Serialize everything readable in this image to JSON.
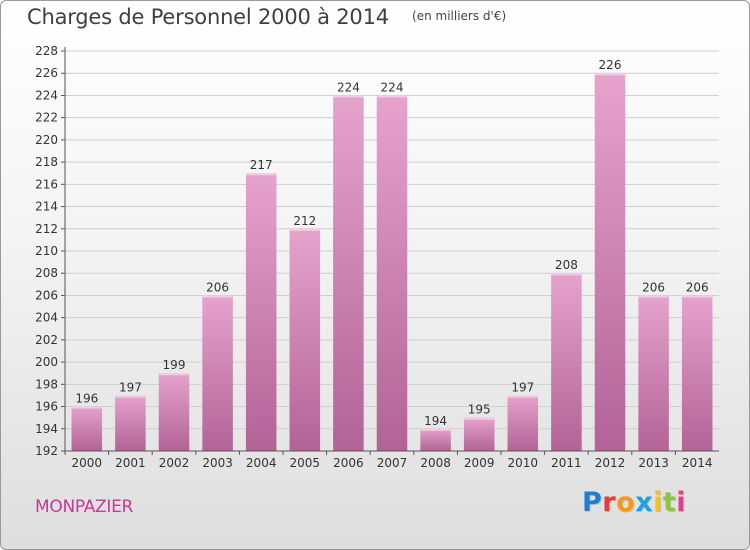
{
  "header": {
    "title": "Charges de Personnel 2000 à 2014",
    "unit": "(en milliers d'€)"
  },
  "footer": {
    "commune": "MONPAZIER",
    "logo_text": "Proxiti"
  },
  "colors": {
    "bar_top": "#e6a3cc",
    "bar_bottom": "#b26396",
    "commune": "#c9379a",
    "logo_letters": [
      "#1e7fd0",
      "#e33d3d",
      "#f39a1c",
      "#1aa3e0",
      "#f0c419",
      "#8cc63f",
      "#e23d8f"
    ]
  },
  "chart_data": {
    "type": "bar",
    "title": "Charges de Personnel 2000 à 2014",
    "subtitle": "(en milliers d'€)",
    "xlabel": "",
    "ylabel": "",
    "categories": [
      "2000",
      "2001",
      "2002",
      "2003",
      "2004",
      "2005",
      "2006",
      "2007",
      "2008",
      "2009",
      "2010",
      "2011",
      "2012",
      "2013",
      "2014"
    ],
    "values": [
      196,
      197,
      199,
      206,
      217,
      212,
      224,
      224,
      194,
      195,
      197,
      208,
      226,
      206,
      206
    ],
    "ylim": [
      192,
      228
    ],
    "yticks": [
      192,
      194,
      196,
      198,
      200,
      202,
      204,
      206,
      208,
      210,
      212,
      214,
      216,
      218,
      220,
      222,
      224,
      226,
      228
    ],
    "grid": true,
    "data_labels": true,
    "legend": "none"
  }
}
